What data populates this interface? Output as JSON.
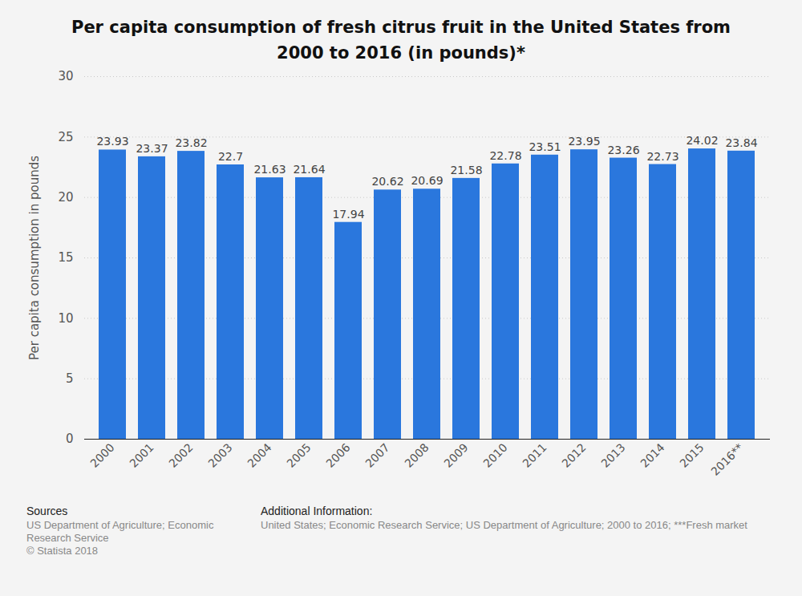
{
  "chart_data": {
    "type": "bar",
    "title": "Per capita consumption of fresh citrus fruit in the United States from 2000 to 2016 (in pounds)*",
    "y_label": "Per capita consumption in pounds",
    "categories": [
      "2000",
      "2001",
      "2002",
      "2003",
      "2004",
      "2005",
      "2006",
      "2007",
      "2008",
      "2009",
      "2010",
      "2011",
      "2012",
      "2013",
      "2014",
      "2015",
      "2016**"
    ],
    "values": [
      23.93,
      23.37,
      23.82,
      22.7,
      21.63,
      21.64,
      17.94,
      20.62,
      20.69,
      21.58,
      22.78,
      23.51,
      23.95,
      23.26,
      22.73,
      24.02,
      23.84
    ],
    "color": "#2a77dd",
    "ylim": [
      0,
      30
    ],
    "yticks": [
      0,
      5,
      10,
      15,
      20,
      25,
      30
    ],
    "grid": true,
    "data_labels": true,
    "sources_heading": "Sources",
    "sources": [
      "US Department of Agriculture; Economic Research Service",
      "© Statista 2018"
    ],
    "additional_info_heading": "Additional Information:",
    "additional_info": "United States; Economic Research Service; US Department of Agriculture; 2000 to 2016; ***Fresh market"
  }
}
